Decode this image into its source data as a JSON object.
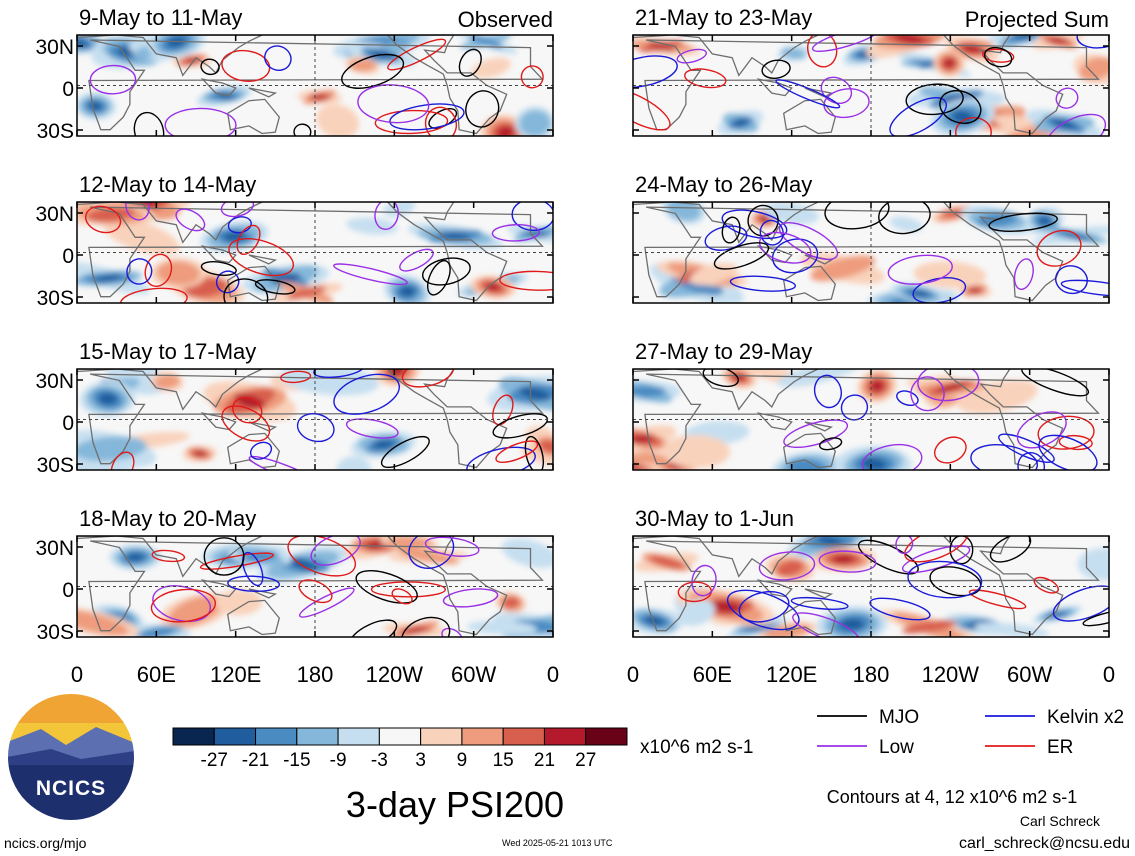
{
  "figure": {
    "title": "3-day PSI200",
    "units": "x10^6 m2 s-1",
    "contour_note": "Contours at 4, 12 x10^6 m2 s-1",
    "author": "Carl Schreck",
    "email": "carl_schreck@ncsu.edu",
    "url": "ncics.org/mjo",
    "timestamp": "Wed 2025-05-21 1013 UTC",
    "logo_text": "NCICS"
  },
  "chart_data": {
    "type": "heatmap",
    "variable": "PSI200 3-day mean anomaly with wave-filtered contours",
    "lon_ticks": [
      "0",
      "60E",
      "120E",
      "180",
      "120W",
      "60W",
      "0"
    ],
    "lat_ticks": [
      "30N",
      "0",
      "30S"
    ],
    "columns": [
      {
        "header": "Observed",
        "panels": [
          {
            "title": "9-May to 11-May"
          },
          {
            "title": "12-May to 14-May"
          },
          {
            "title": "15-May to 17-May"
          },
          {
            "title": "18-May to 20-May"
          }
        ]
      },
      {
        "header": "Projected Sum",
        "panels": [
          {
            "title": "21-May to 23-May"
          },
          {
            "title": "24-May to 26-May"
          },
          {
            "title": "27-May to 29-May"
          },
          {
            "title": "30-May to 1-Jun"
          }
        ]
      }
    ],
    "colorbar": {
      "tick_labels": [
        "-27",
        "-21",
        "-15",
        "-9",
        "-3",
        "3",
        "9",
        "15",
        "21",
        "27"
      ],
      "colors": [
        "#08264f",
        "#1f5d9e",
        "#4a8bc2",
        "#85b7da",
        "#c6dff0",
        "#f7f7f7",
        "#f9d2bb",
        "#ee9c7d",
        "#d85f4d",
        "#b41a2c",
        "#6a0217"
      ]
    },
    "legend": [
      {
        "label": "MJO",
        "color": "#000000"
      },
      {
        "label": "Kelvin x2",
        "color": "#1a1ad9"
      },
      {
        "label": "Low",
        "color": "#9a30e6"
      },
      {
        "label": "ER",
        "color": "#e01a1a"
      }
    ]
  }
}
